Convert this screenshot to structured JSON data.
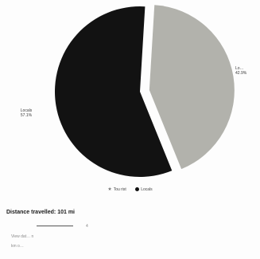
{
  "chart_data": {
    "type": "pie",
    "slices": [
      {
        "label": "Lo…",
        "value": 42.9,
        "percent_label": "42.9%",
        "color": "#b2b2ac",
        "exploded": true
      },
      {
        "label": "Locals",
        "value": 57.1,
        "percent_label": "57.1%",
        "color": "#121212",
        "exploded": false
      }
    ],
    "legend": {
      "placement": "bottom",
      "items": [
        {
          "label": "Tou rist",
          "marker": "star"
        },
        {
          "label": "Locals",
          "marker": "dot"
        }
      ]
    }
  },
  "summary": {
    "distance_text": "Distance travelled: 101 mi",
    "slider_value": "4",
    "line1": "View dat… n",
    "line2": "km o…"
  }
}
